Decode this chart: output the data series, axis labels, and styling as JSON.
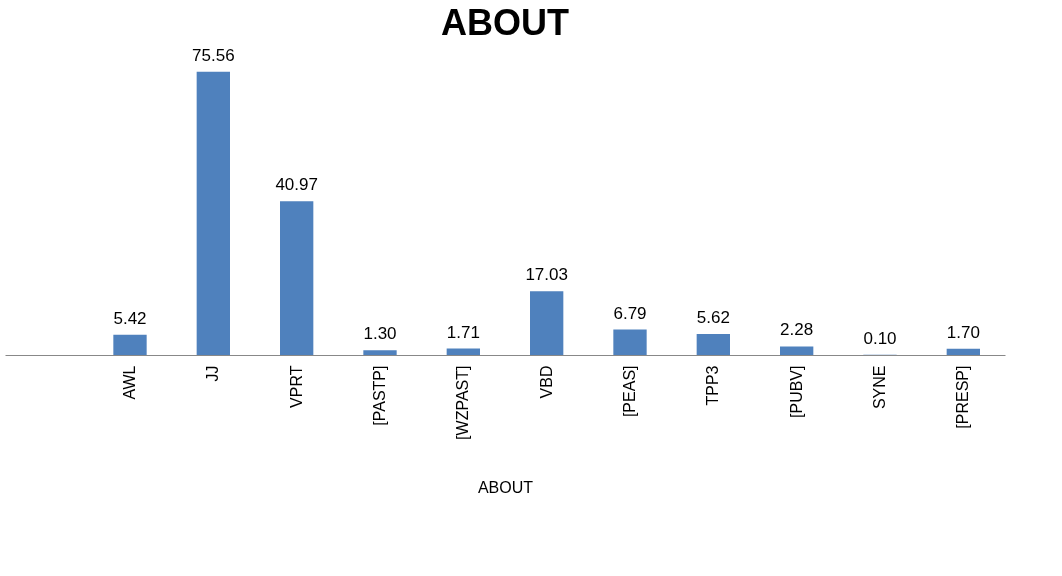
{
  "chart_data": {
    "type": "bar",
    "title": "ABOUT",
    "xlabel": "ABOUT",
    "categories": [
      null,
      "AWL",
      "JJ",
      "VPRT",
      "[PASTP]",
      "[WZPAST]",
      "VBD",
      "[PEAS]",
      "TPP3",
      "[PUBV]",
      "SYNE",
      "[PRESP]"
    ],
    "values": [
      null,
      5.42,
      75.56,
      40.97,
      1.3,
      1.71,
      17.03,
      6.79,
      5.62,
      2.28,
      0.1,
      1.7
    ],
    "value_labels": [
      null,
      "5.42",
      "75.56",
      "40.97",
      "1.30",
      "1.71",
      "17.03",
      "6.79",
      "5.62",
      "2.28",
      "0.10",
      "1.70"
    ],
    "color": "#4f81bd"
  }
}
